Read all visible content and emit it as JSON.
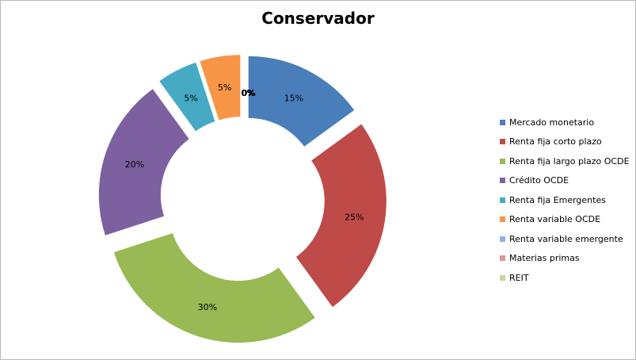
{
  "chart_data": {
    "type": "pie",
    "variant": "exploded-donut",
    "title": "Conservador",
    "categories": [
      "Mercado monetario",
      "Renta fija corto plazo",
      "Renta fija largo plazo OCDE",
      "Crédito OCDE",
      "Renta fija Emergentes",
      "Renta variable OCDE",
      "Renta variable emergente",
      "Materias primas",
      "REIT"
    ],
    "values": [
      15,
      25,
      30,
      20,
      5,
      5,
      0,
      0,
      0
    ],
    "labels": [
      "15%",
      "25%",
      "30%",
      "20%",
      "5%",
      "5%",
      "0%",
      "0%",
      "0%"
    ],
    "colors": [
      "#4a7ebb",
      "#be4b48",
      "#98b954",
      "#7d60a0",
      "#46aac5",
      "#f79646",
      "#8eb4e3",
      "#d99694",
      "#c3d69b"
    ],
    "legend": "right",
    "grid": false
  }
}
